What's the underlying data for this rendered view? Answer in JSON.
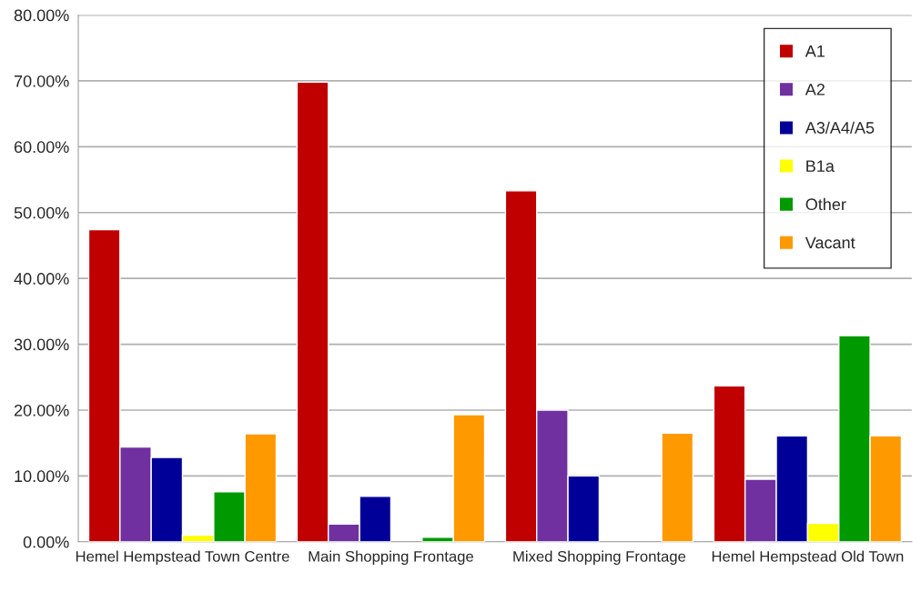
{
  "chart_data": {
    "type": "bar",
    "categories": [
      "Hemel Hempstead Town Centre",
      "Main Shopping Frontage",
      "Mixed Shopping Frontage",
      "Hemel Hempstead Old Town"
    ],
    "series": [
      {
        "name": "A1",
        "color": "#c00000",
        "values": [
          47.4,
          69.8,
          53.3,
          23.7
        ]
      },
      {
        "name": "A2",
        "color": "#7030a0",
        "values": [
          14.4,
          2.7,
          20.0,
          9.5
        ]
      },
      {
        "name": "A3/A4/A5",
        "color": "#000099",
        "values": [
          12.8,
          6.9,
          10.0,
          16.1
        ]
      },
      {
        "name": "B1a",
        "color": "#ffff00",
        "values": [
          1.0,
          null,
          null,
          2.8
        ]
      },
      {
        "name": "Other",
        "color": "#009900",
        "values": [
          7.6,
          0.7,
          null,
          31.3
        ]
      },
      {
        "name": "Vacant",
        "color": "#ff9900",
        "values": [
          16.4,
          19.3,
          16.5,
          16.1
        ]
      }
    ],
    "ylim": [
      0,
      80
    ],
    "yticks": [
      {
        "value": 0,
        "label": "0.00%"
      },
      {
        "value": 10,
        "label": "10.00%"
      },
      {
        "value": 20,
        "label": "20.00%"
      },
      {
        "value": 30,
        "label": "30.00%"
      },
      {
        "value": 40,
        "label": "40.00%"
      },
      {
        "value": 50,
        "label": "50.00%"
      },
      {
        "value": 60,
        "label": "60.00%"
      },
      {
        "value": 70,
        "label": "70.00%"
      },
      {
        "value": 80,
        "label": "80.00%"
      }
    ],
    "grid": "y",
    "legend": "top right"
  }
}
